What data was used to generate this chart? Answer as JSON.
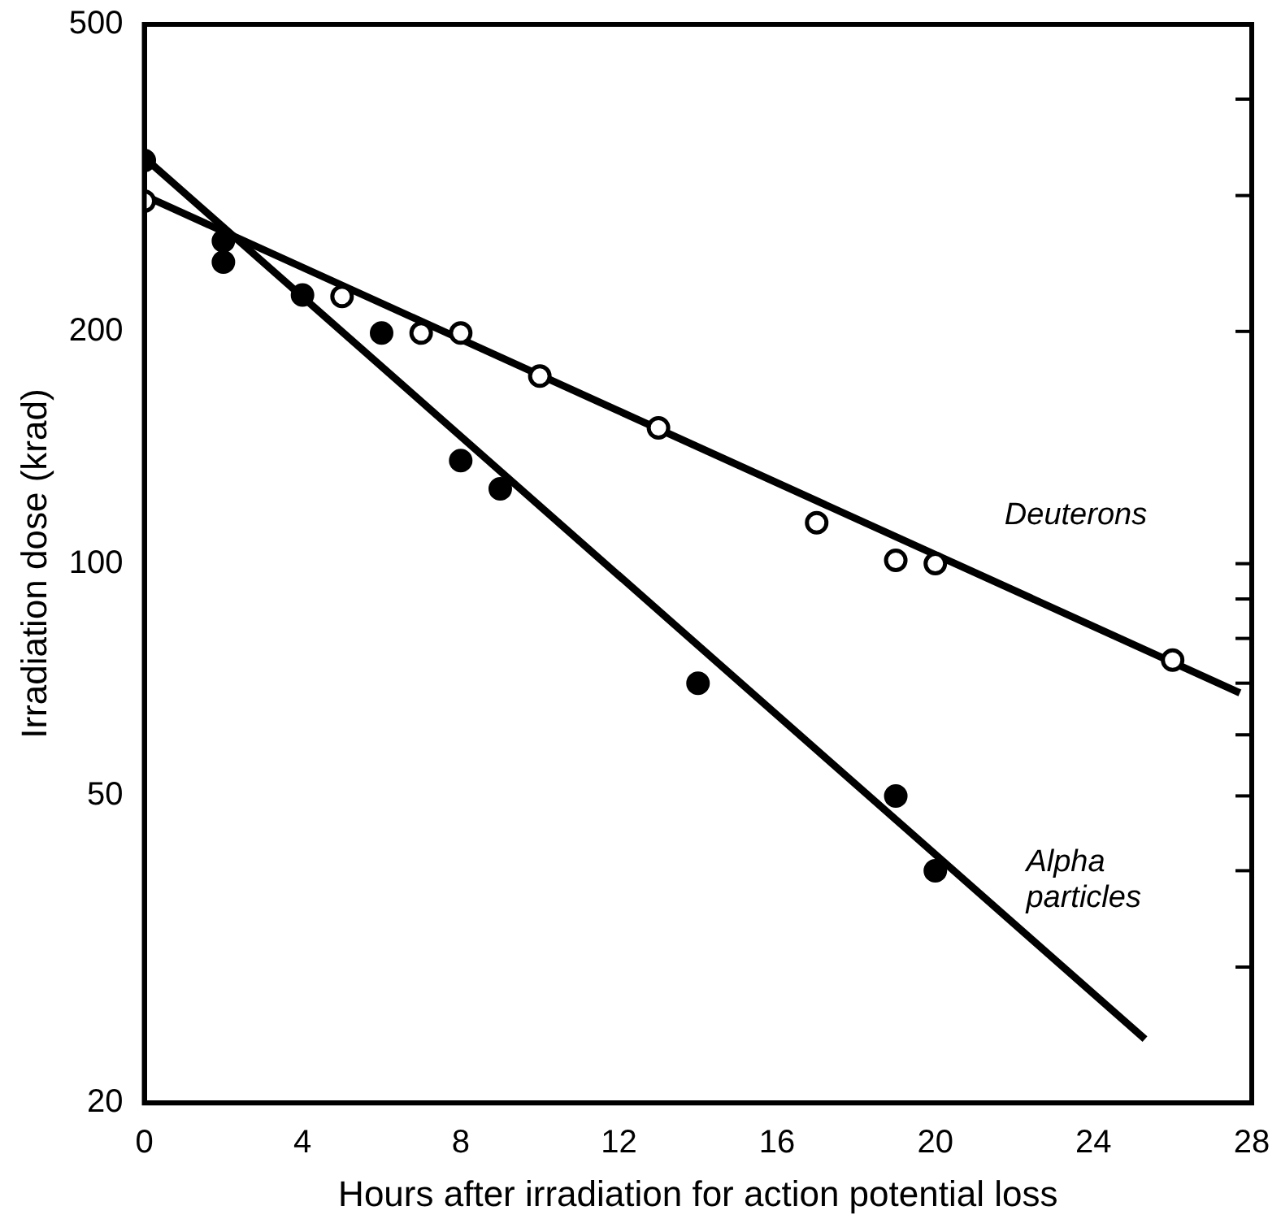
{
  "chart_data": {
    "type": "scatter",
    "xlabel": "Hours after irradiation for action potential loss",
    "ylabel": "Irradiation dose (krad)",
    "log": "y",
    "xlim": [
      0,
      28
    ],
    "xticks": [
      0,
      4,
      8,
      12,
      16,
      20,
      24,
      28
    ],
    "ylim": [
      20,
      500
    ],
    "yticks": [
      20,
      {
        "value": 30,
        "label": null
      },
      {
        "value": 40,
        "label": null
      },
      50,
      {
        "value": 60,
        "label": null
      },
      {
        "value": 70,
        "label": null
      },
      {
        "value": 80,
        "label": null
      },
      {
        "value": 90,
        "label": null
      },
      100,
      200,
      {
        "value": 300,
        "label": null
      },
      {
        "value": 400,
        "label": null
      },
      500
    ],
    "grid": false,
    "legend": false,
    "marker": "circle",
    "series": [
      {
        "type": "line",
        "name": "Deuterons",
        "color": "#000000",
        "x": [
          0,
          27.7
        ],
        "values": [
          300,
          68
        ],
        "marker": "none"
      },
      {
        "type": "line",
        "name": "Alpha\nparticles",
        "color": "#000000",
        "x": [
          0,
          25.3
        ],
        "values": [
          336,
          24.2
        ],
        "marker": "none"
      },
      {
        "color": "#ffffff",
        "x": [
          0,
          5,
          7,
          8,
          10,
          13,
          17,
          19,
          20,
          26
        ],
        "values": [
          295,
          222,
          199,
          199,
          175,
          150,
          113,
          101,
          100,
          75
        ]
      },
      {
        "color": "#000000",
        "x": [
          0,
          2,
          2,
          4,
          6,
          8,
          9,
          14,
          19,
          20
        ],
        "values": [
          333,
          262,
          246,
          223,
          199,
          136,
          125,
          70,
          50,
          40
        ]
      }
    ]
  }
}
